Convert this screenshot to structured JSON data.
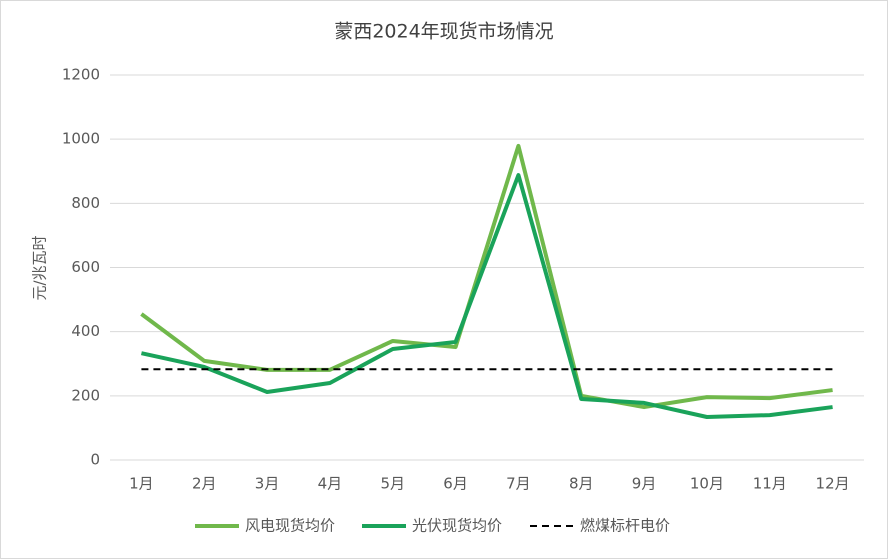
{
  "chart_data": {
    "type": "line",
    "title": "蒙西2024年现货市场情况",
    "y_label": "元/兆瓦时",
    "categories": [
      "1月",
      "2月",
      "3月",
      "4月",
      "5月",
      "6月",
      "7月",
      "8月",
      "9月",
      "10月",
      "11月",
      "12月"
    ],
    "series": [
      {
        "name": "风电现货均价",
        "color": "#70b84b",
        "values": [
          455,
          309,
          281,
          281,
          371,
          352,
          979,
          200,
          165,
          196,
          193,
          218
        ]
      },
      {
        "name": "光伏现货均价",
        "color": "#1aa35a",
        "values": [
          333,
          290,
          212,
          240,
          346,
          368,
          888,
          190,
          178,
          134,
          140,
          165
        ]
      },
      {
        "name": "燃煤标杆电价",
        "color": "#000000",
        "dashed": true,
        "values": [
          283,
          283,
          283,
          283,
          283,
          283,
          283,
          283,
          283,
          283,
          283,
          283
        ]
      }
    ],
    "ylim": [
      0,
      1200
    ],
    "yticks": [
      0,
      200,
      400,
      600,
      800,
      1000,
      1200
    ],
    "grid": true,
    "legend": "bottom"
  }
}
